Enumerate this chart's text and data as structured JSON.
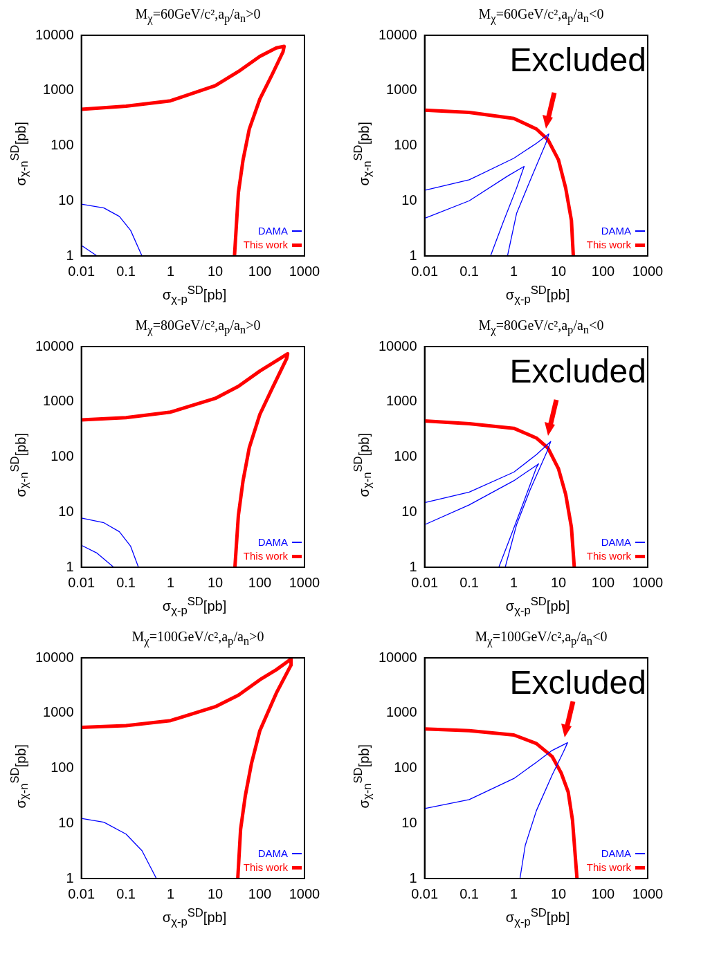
{
  "chart_data": [
    {
      "type": "line",
      "title": "M$_{χ}$=60GeV/c²,a$_{p}$/a$_{n}$>0",
      "xlabel": "σ$_{χ-p}$$^{SD}$[pb]",
      "ylabel": "σ$_{χ-n}$$^{SD}$[pb]",
      "log": "xy",
      "xlim": [
        0.01,
        1000
      ],
      "ylim": [
        1,
        10000
      ],
      "xticks": [
        0.01,
        0.1,
        1,
        10,
        100,
        1000
      ],
      "yticks": [
        1,
        10,
        100,
        1000,
        10000
      ],
      "legend": "bottom right",
      "series": [
        {
          "name": "DAMA",
          "color": "#0000ff",
          "x": [
            0.01,
            0.032,
            0.071,
            0.127,
            0.228,
            null,
            0.01,
            0.0225
          ],
          "values": [
            8.7,
            7.4,
            5.2,
            2.9,
            1,
            null,
            1.55,
            1
          ]
        },
        {
          "name": "This work",
          "color": "#ff0000",
          "x": [
            0.01,
            0.1,
            1,
            10,
            33,
            100,
            234,
            350,
            330,
            186,
            100,
            58,
            42,
            33,
            27
          ],
          "values": [
            455,
            520,
            650,
            1220,
            2200,
            4150,
            5900,
            6300,
            5000,
            1900,
            700,
            200,
            55,
            14,
            1
          ]
        }
      ]
    },
    {
      "type": "line",
      "title": "M$_{χ}$=60GeV/c²,a$_{p}$/a$_{n}$<0",
      "xlabel": "σ$_{χ-p}$$^{SD}$[pb]",
      "ylabel": "σ$_{χ-n}$$^{SD}$[pb]",
      "log": "xy",
      "xlim": [
        0.01,
        1000
      ],
      "ylim": [
        1,
        10000
      ],
      "xticks": [
        0.01,
        0.1,
        1,
        10,
        100,
        1000
      ],
      "yticks": [
        1,
        10,
        100,
        1000,
        10000
      ],
      "legend": "bottom right",
      "annotations": [
        "Excluded"
      ],
      "series": [
        {
          "name": "DAMA",
          "color": "#0000ff",
          "x": [
            0.01,
            0.1,
            1,
            3.2,
            6.1,
            5.2,
            2.3,
            1.15,
            0.72,
            null,
            0.01,
            0.1,
            0.72,
            1.7,
            1.15,
            0.57,
            0.3
          ],
          "values": [
            15.5,
            24,
            59,
            110,
            163,
            110,
            23,
            5.9,
            1,
            null,
            4.8,
            10,
            28,
            42,
            17,
            4,
            1
          ]
        },
        {
          "name": "This work",
          "color": "#ff0000",
          "x": [
            0.01,
            0.1,
            1,
            3.2,
            5.8,
            10,
            14.5,
            19.5,
            21.5
          ],
          "values": [
            440,
            400,
            310,
            200,
            128,
            55,
            17,
            4.4,
            1
          ]
        }
      ]
    },
    {
      "type": "line",
      "title": "M$_{χ}$=80GeV/c²,a$_{p}$/a$_{n}$>0",
      "xlabel": "σ$_{χ-p}$$^{SD}$[pb]",
      "ylabel": "σ$_{χ-n}$$^{SD}$[pb]",
      "log": "xy",
      "xlim": [
        0.01,
        1000
      ],
      "ylim": [
        1,
        10000
      ],
      "xticks": [
        0.01,
        0.1,
        1,
        10,
        100,
        1000
      ],
      "yticks": [
        1,
        10,
        100,
        1000,
        10000
      ],
      "legend": "bottom right",
      "series": [
        {
          "name": "DAMA",
          "color": "#0000ff",
          "x": [
            0.01,
            0.032,
            0.071,
            0.127,
            0.19,
            null,
            0.01,
            0.0225,
            0.053
          ],
          "values": [
            7.8,
            6.4,
            4.4,
            2.4,
            1,
            null,
            2.5,
            1.8,
            1
          ]
        },
        {
          "name": "This work",
          "color": "#ff0000",
          "x": [
            0.01,
            0.1,
            1,
            10,
            33,
            100,
            234,
            420,
            400,
            186,
            100,
            58,
            42,
            33,
            27.6
          ],
          "values": [
            470,
            515,
            650,
            1150,
            1900,
            3600,
            5500,
            7400,
            6100,
            1700,
            590,
            148,
            37,
            8.7,
            1
          ]
        }
      ]
    },
    {
      "type": "line",
      "title": "M$_{χ}$=80GeV/c²,a$_{p}$/a$_{n}$<0",
      "xlabel": "σ$_{χ-p}$$^{SD}$[pb]",
      "ylabel": "σ$_{χ-n}$$^{SD}$[pb]",
      "log": "xy",
      "xlim": [
        0.01,
        1000
      ],
      "ylim": [
        1,
        10000
      ],
      "xticks": [
        0.01,
        0.1,
        1,
        10,
        100,
        1000
      ],
      "yticks": [
        1,
        10,
        100,
        1000,
        10000
      ],
      "legend": "bottom right",
      "annotations": [
        "Excluded"
      ],
      "series": [
        {
          "name": "DAMA",
          "color": "#0000ff",
          "x": [
            0.01,
            0.1,
            1,
            3.2,
            6.7,
            5.5,
            2.3,
            1.15,
            0.64,
            null,
            0.01,
            0.1,
            1,
            3.6,
            3.2,
            1.6,
            0.8,
            0.46
          ],
          "values": [
            14.8,
            23,
            53,
            110,
            190,
            123,
            25,
            5.9,
            1,
            null,
            5.9,
            13.5,
            37,
            75,
            64,
            14,
            3.2,
            1
          ]
        },
        {
          "name": "This work",
          "color": "#ff0000",
          "x": [
            0.01,
            0.1,
            1,
            3.2,
            5.8,
            10,
            14.5,
            19.5,
            22.6
          ],
          "values": [
            450,
            400,
            330,
            220,
            145,
            61,
            21,
            5.3,
            1
          ]
        }
      ]
    },
    {
      "type": "line",
      "title": "M$_{χ}$=100GeV/c²,a$_{p}$/a$_{n}$>0",
      "xlabel": "σ$_{χ-p}$$^{SD}$[pb]",
      "ylabel": "σ$_{χ-n}$$^{SD}$[pb]",
      "log": "xy",
      "xlim": [
        0.01,
        1000
      ],
      "ylim": [
        1,
        10000
      ],
      "xticks": [
        0.01,
        0.1,
        1,
        10,
        100,
        1000
      ],
      "yticks": [
        1,
        10,
        100,
        1000,
        10000
      ],
      "legend": "bottom right",
      "series": [
        {
          "name": "DAMA",
          "color": "#0000ff",
          "x": [
            0.01,
            0.032,
            0.1,
            0.228,
            0.48
          ],
          "values": [
            12.3,
            10.5,
            6.4,
            3.2,
            1
          ]
        },
        {
          "name": "This work",
          "color": "#ff0000",
          "x": [
            0.01,
            0.1,
            1,
            10,
            33,
            100,
            234,
            500,
            500,
            234,
            100,
            65,
            47,
            37,
            32
          ],
          "values": [
            550,
            590,
            730,
            1300,
            2100,
            4000,
            6100,
            9500,
            7400,
            2300,
            480,
            123,
            31,
            7.8,
            1
          ]
        }
      ]
    },
    {
      "type": "line",
      "title": "M$_{χ}$=100GeV/c²,a$_{p}$/a$_{n}$<0",
      "xlabel": "σ$_{χ-p}$$^{SD}$[pb]",
      "ylabel": "σ$_{χ-n}$$^{SD}$[pb]",
      "log": "xy",
      "xlim": [
        0.01,
        1000
      ],
      "ylim": [
        1,
        10000
      ],
      "xticks": [
        0.01,
        0.1,
        1,
        10,
        100,
        1000
      ],
      "yticks": [
        1,
        10,
        100,
        1000,
        10000
      ],
      "legend": "bottom right",
      "annotations": [
        "Excluded"
      ],
      "series": [
        {
          "name": "DAMA",
          "color": "#0000ff",
          "x": [
            0.01,
            0.1,
            1,
            3.2,
            7.2,
            16,
            13,
            7.2,
            3.2,
            1.8,
            1.37
          ],
          "values": [
            18.5,
            27,
            65,
            128,
            210,
            290,
            200,
            75,
            17,
            4,
            1
          ]
        },
        {
          "name": "This work",
          "color": "#ff0000",
          "x": [
            0.01,
            0.1,
            1,
            3.2,
            7.2,
            11.5,
            16.5,
            20.6,
            26
          ],
          "values": [
            515,
            480,
            400,
            280,
            163,
            82,
            37,
            11.5,
            1
          ]
        }
      ]
    }
  ]
}
